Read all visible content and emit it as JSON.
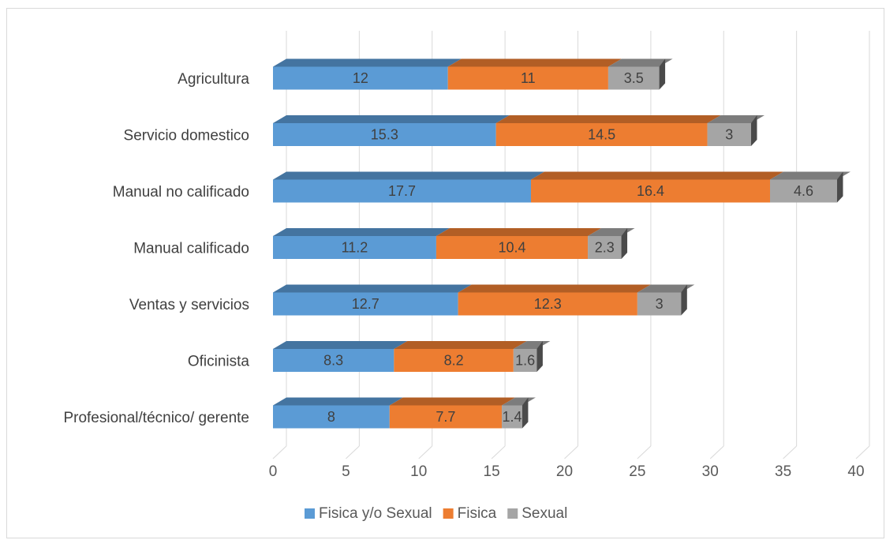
{
  "chart_data": {
    "type": "bar",
    "orientation": "horizontal",
    "stacked": true,
    "style": "3d",
    "categories": [
      "Agricultura",
      "Servicio domestico",
      "Manual no calificado",
      "Manual calificado",
      "Ventas y servicios",
      "Oficinista",
      "Profesional/técnico/ gerente"
    ],
    "series": [
      {
        "name": "Fisica y/o Sexual",
        "color": "#5b9bd5",
        "values": [
          12,
          15.3,
          17.7,
          11.2,
          12.7,
          8.3,
          8
        ]
      },
      {
        "name": "Fisica",
        "color": "#ed7d31",
        "values": [
          11,
          14.5,
          16.4,
          10.4,
          12.3,
          8.2,
          7.7
        ]
      },
      {
        "name": "Sexual",
        "color": "#a5a5a5",
        "values": [
          3.5,
          3,
          4.6,
          2.3,
          3,
          1.6,
          1.4
        ]
      }
    ],
    "xlim": [
      0,
      40
    ],
    "xticks": [
      "0",
      "5",
      "10",
      "15",
      "20",
      "25",
      "30",
      "35",
      "40"
    ],
    "grid": true,
    "legend_position": "bottom",
    "data_labels": true
  }
}
